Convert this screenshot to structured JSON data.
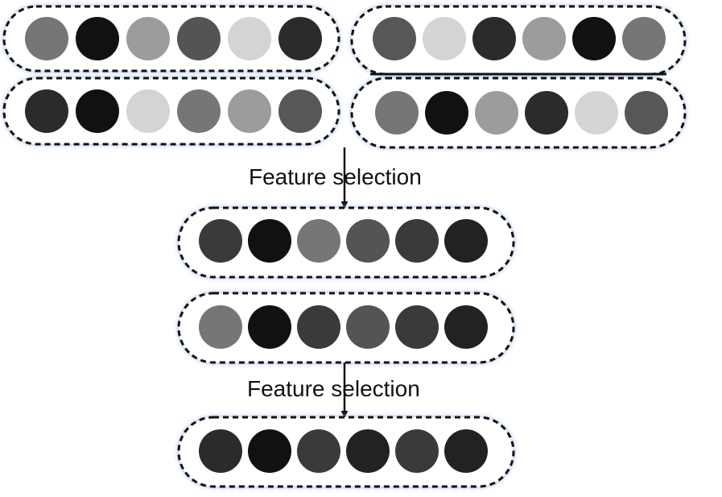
{
  "labels": {
    "step1": "Feature selection",
    "step2": "Feature selection"
  },
  "colors": {
    "border": "#111111",
    "arrow": "#111111",
    "background": "#ffffff"
  },
  "groups": [
    {
      "id": "input-top-left",
      "tones": [
        "#767676",
        "#111111",
        "#9c9c9c",
        "#545454",
        "#d4d4d4",
        "#2b2b2b"
      ]
    },
    {
      "id": "input-top-right",
      "tones": [
        "#575757",
        "#d4d4d4",
        "#2b2b2b",
        "#9c9c9c",
        "#111111",
        "#767676"
      ]
    },
    {
      "id": "input-bottom-left",
      "tones": [
        "#2b2b2b",
        "#111111",
        "#d4d4d4",
        "#767676",
        "#9c9c9c",
        "#575757"
      ]
    },
    {
      "id": "input-bottom-right",
      "tones": [
        "#767676",
        "#111111",
        "#9c9c9c",
        "#2b2b2b",
        "#d4d4d4",
        "#575757"
      ]
    },
    {
      "id": "selected-1a",
      "tones": [
        "#3a3a3a",
        "#111111",
        "#767676",
        "#545454",
        "#3a3a3a",
        "#222222"
      ]
    },
    {
      "id": "selected-1b",
      "tones": [
        "#767676",
        "#111111",
        "#3a3a3a",
        "#545454",
        "#3a3a3a",
        "#222222"
      ]
    },
    {
      "id": "selected-2",
      "tones": [
        "#2b2b2b",
        "#111111",
        "#3a3a3a",
        "#222222",
        "#3a3a3a",
        "#222222"
      ]
    }
  ]
}
